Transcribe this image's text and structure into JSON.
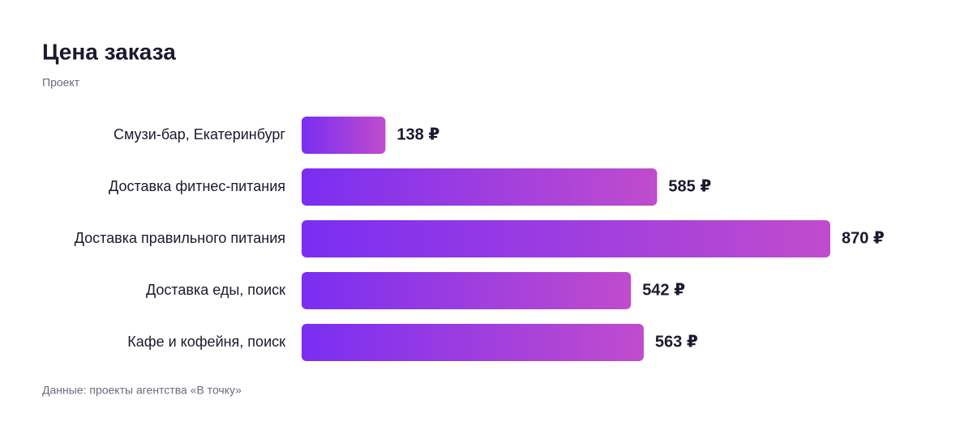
{
  "chart_data": {
    "type": "hbar",
    "title": "Цена заказа",
    "subtitle": "Проект",
    "categories": [
      "Смузи-бар, Екатеринбург",
      "Доставка фитнес-питания",
      "Доставка правильного питания",
      "Доставка еды, поиск",
      "Кафе и кофейня, поиск"
    ],
    "values": [
      138,
      585,
      870,
      542,
      563
    ],
    "value_labels": [
      "138 ₽",
      "585 ₽",
      "870 ₽",
      "542 ₽",
      "563 ₽"
    ],
    "color": [
      "#7a2ef2",
      "#c04ccd"
    ],
    "source": "Данные: проекты агентства «В точку»"
  }
}
